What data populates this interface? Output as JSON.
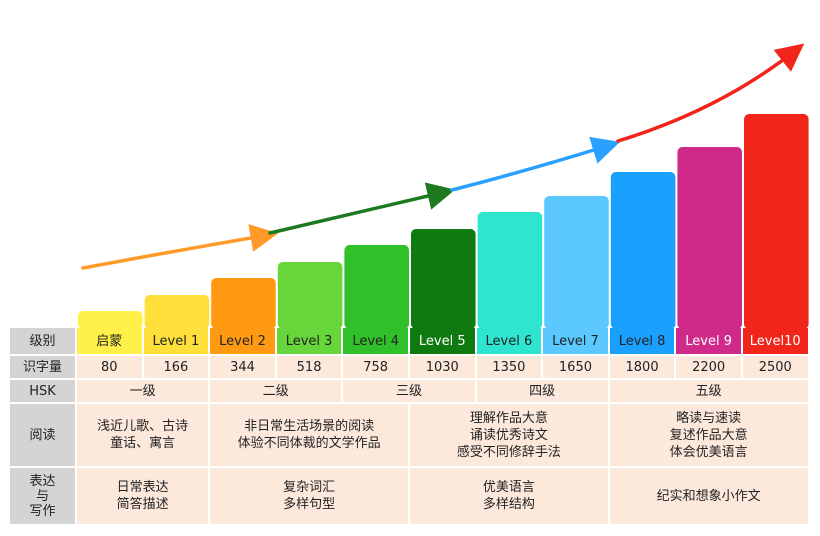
{
  "chart_data": {
    "type": "bar",
    "categories": [
      "启蒙",
      "Level 1",
      "Level 2",
      "Level 3",
      "Level 4",
      "Level 5",
      "Level 6",
      "Level 7",
      "Level 8",
      "Level 9",
      "Level10"
    ],
    "values": [
      80,
      166,
      344,
      518,
      758,
      1030,
      1350,
      1650,
      1800,
      2200,
      2500
    ],
    "colors": [
      "#fff04a",
      "#ffe03a",
      "#ff9a12",
      "#66d63a",
      "#2fc02a",
      "#0f7a10",
      "#2ee6cf",
      "#5bc8ff",
      "#1aa0ff",
      "#cf2a89",
      "#f2251a"
    ],
    "category_text_colors": [
      "#222222",
      "#222222",
      "#222222",
      "#222222",
      "#222222",
      "#ffffff",
      "#222222",
      "#222222",
      "#222222",
      "#ffffff",
      "#ffffff"
    ],
    "arrow_colors": [
      "#ff9a28",
      "#1f7a1f",
      "#2aa0ff",
      "#f2251a"
    ],
    "table": {
      "row_labels": {
        "level": "级别",
        "chars": "识字量",
        "hsk": "HSK",
        "reading": "阅读",
        "writing": [
          "表达",
          "与",
          "写作"
        ]
      },
      "hsk": [
        {
          "text": "一级",
          "span": 2
        },
        {
          "text": "二级",
          "span": 2
        },
        {
          "text": "三级",
          "span": 2
        },
        {
          "text": "四级",
          "span": 2
        },
        {
          "text": "五级",
          "span": 3
        }
      ],
      "reading": [
        {
          "lines": [
            "浅近儿歌、古诗",
            "童话、寓言"
          ],
          "span": 2
        },
        {
          "lines": [
            "非日常生活场景的阅读",
            "体验不同体裁的文学作品"
          ],
          "span": 3
        },
        {
          "lines": [
            "理解作品大意",
            "诵读优秀诗文",
            "感受不同修辞手法"
          ],
          "span": 3
        },
        {
          "lines": [
            "略读与速读",
            "复述作品大意",
            "体会优美语言"
          ],
          "span": 3
        }
      ],
      "writing": [
        {
          "lines": [
            "日常表达",
            "简答描述"
          ],
          "span": 2
        },
        {
          "lines": [
            "复杂词汇",
            "多样句型"
          ],
          "span": 3
        },
        {
          "lines": [
            "优美语言",
            "多样结构"
          ],
          "span": 3
        },
        {
          "lines": [
            "纪实和想象小作文"
          ],
          "span": 3
        }
      ]
    }
  }
}
